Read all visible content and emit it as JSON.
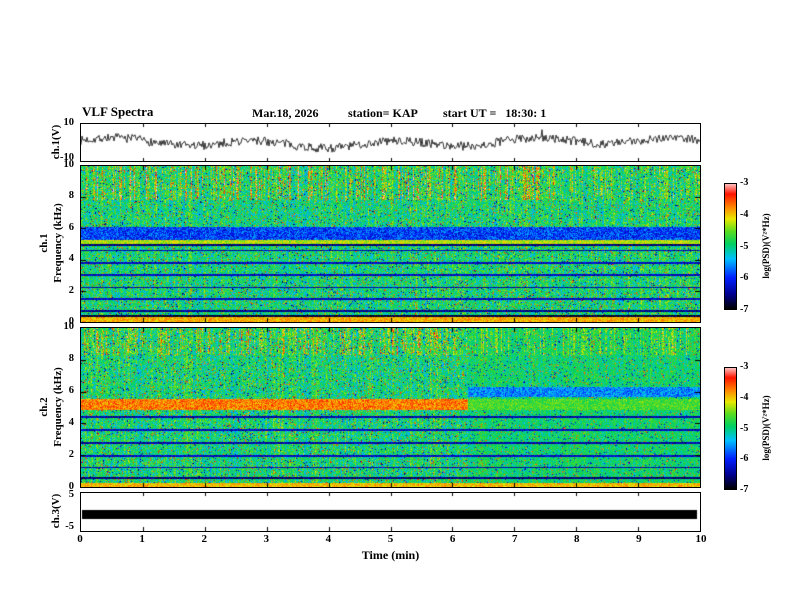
{
  "header": {
    "title": "VLF Spectra",
    "date": "Mar.18, 2026",
    "station": "station= KAP",
    "start_ut": "start UT =   18:30: 1"
  },
  "panels": {
    "waveform": {
      "label": "ch.1(V)",
      "ymax": "10",
      "ymin": "-10"
    },
    "spec1": {
      "label_ch": "ch.1",
      "label_freq": "Frequency (kHz)",
      "yticks": [
        "10",
        "8",
        "6",
        "4",
        "2",
        "0"
      ]
    },
    "spec2": {
      "label_ch": "ch.2",
      "label_freq": "Frequency (kHz)",
      "yticks": [
        "10",
        "8",
        "6",
        "4",
        "2",
        "0"
      ]
    },
    "ch3": {
      "label": "ch.3(V)",
      "ymax": "5",
      "ymin": "-5"
    }
  },
  "xaxis": {
    "label": "Time (min)",
    "ticks": [
      "0",
      "1",
      "2",
      "3",
      "4",
      "5",
      "6",
      "7",
      "8",
      "9",
      "10"
    ]
  },
  "colorbars": [
    {
      "label": "log(PSD)(V²*Hz)",
      "ticks": [
        "-3",
        "-4",
        "-5",
        "-6",
        "-7"
      ]
    },
    {
      "label": "log(PSD)(V²*Hz)",
      "ticks": [
        "-3",
        "-4",
        "-5",
        "-6",
        "-7"
      ]
    }
  ],
  "colormap": {
    "stops": [
      [
        0.0,
        "#000000"
      ],
      [
        0.12,
        "#000090"
      ],
      [
        0.25,
        "#0020ff"
      ],
      [
        0.4,
        "#00c0ff"
      ],
      [
        0.52,
        "#00d060"
      ],
      [
        0.62,
        "#58dc20"
      ],
      [
        0.72,
        "#e8e800"
      ],
      [
        0.82,
        "#ff8000"
      ],
      [
        0.92,
        "#ff1400"
      ],
      [
        1.0,
        "#ffc0c0"
      ]
    ]
  },
  "chart_data": [
    {
      "id": "ch1_waveform",
      "type": "line",
      "ylabel": "ch.1(V)",
      "xlim": [
        0,
        10
      ],
      "ylim": [
        -10,
        10
      ],
      "description": "Broadband noisy voltage waveform, mean ~0 V, typical excursions ±5 V with occasional spikes to ±8 V over the 10 minute record.",
      "gen": {
        "seed": 7,
        "base_amp": 1.8,
        "slow_amp": 1.2,
        "noise_amp": 2.4,
        "spike_prob": 0.985,
        "spike_amp": 9
      }
    },
    {
      "id": "ch1_spectrogram",
      "type": "heatmap",
      "xlabel": "Time (min)",
      "ylabel": "Frequency (kHz)",
      "zlabel": "log(PSD)(V²*Hz)",
      "xlim": [
        0,
        10
      ],
      "ylim": [
        0,
        10
      ],
      "zlim": [
        -7,
        -3
      ],
      "base_psd": -4.9,
      "noise_psd": 0.55,
      "seed": 11,
      "features": {
        "top_streaks": {
          "f0": 7.85,
          "f1": 10,
          "max_boost": 1.7,
          "density": 0.45,
          "fade_after_t": 7.7,
          "fade_factor": 0.45
        },
        "bands": [
          {
            "f0": 5.3,
            "f1": 6.15,
            "psd": -5.9,
            "noise": 0.45
          },
          {
            "f0": 5.02,
            "f1": 5.28,
            "psd": -4.25,
            "noise": 0.3
          },
          {
            "f0": 0.0,
            "f1": 0.35,
            "psd": -3.9,
            "noise": 0.3
          }
        ],
        "lines": [
          {
            "f": 4.98,
            "psd": -6.6
          },
          {
            "f": 4.62,
            "psd": -6.4
          },
          {
            "f": 3.82,
            "psd": -6.3
          },
          {
            "f": 3.05,
            "psd": -6.3
          },
          {
            "f": 2.25,
            "psd": -6.4
          },
          {
            "f": 1.5,
            "psd": -6.3
          },
          {
            "f": 0.75,
            "psd": -6.5
          },
          {
            "f": 0.42,
            "psd": -6.8
          }
        ]
      }
    },
    {
      "id": "ch2_spectrogram",
      "type": "heatmap",
      "xlabel": "Time (min)",
      "ylabel": "Frequency (kHz)",
      "zlabel": "log(PSD)(V²*Hz)",
      "xlim": [
        0,
        10
      ],
      "ylim": [
        0,
        10
      ],
      "zlim": [
        -7,
        -3
      ],
      "base_psd": -4.9,
      "noise_psd": 0.55,
      "seed": 23,
      "features": {
        "top_streaks": {
          "f0": 8.35,
          "f1": 10,
          "max_boost": 1.2,
          "density": 0.5,
          "fade_after_t": 6.25,
          "fade_factor": 0.6
        },
        "bands": [
          {
            "f0": 4.85,
            "f1": 5.55,
            "psd": -3.7,
            "noise": 0.35,
            "t0": 0,
            "t1": 6.25
          },
          {
            "f0": 4.85,
            "f1": 5.55,
            "psd": -4.6,
            "noise": 0.3,
            "t0": 6.25,
            "t1": 10
          },
          {
            "f0": 5.7,
            "f1": 6.3,
            "psd": -5.6,
            "noise": 0.4,
            "t0": 6.25,
            "t1": 10
          },
          {
            "f0": 0.0,
            "f1": 0.3,
            "psd": -3.95,
            "noise": 0.3
          }
        ],
        "lines": [
          {
            "f": 4.45,
            "psd": -6.4
          },
          {
            "f": 3.6,
            "psd": -6.3
          },
          {
            "f": 2.8,
            "psd": -6.4
          },
          {
            "f": 2.0,
            "psd": -6.3
          },
          {
            "f": 1.25,
            "psd": -6.4
          },
          {
            "f": 0.6,
            "psd": -6.6
          }
        ],
        "smooth_after_t": 6.25,
        "smooth_factor": 0.65
      }
    },
    {
      "id": "ch3_waveform",
      "type": "line",
      "ylabel": "ch.3(V)",
      "xlim": [
        0,
        10
      ],
      "ylim": [
        -5,
        5
      ],
      "description": "Flat saturated trace rendered as a thick solid black bar spanning the full record, from about -1.8 V to +0.5 V.",
      "bar": {
        "v_top": 0.5,
        "v_bottom": -1.8
      }
    }
  ]
}
